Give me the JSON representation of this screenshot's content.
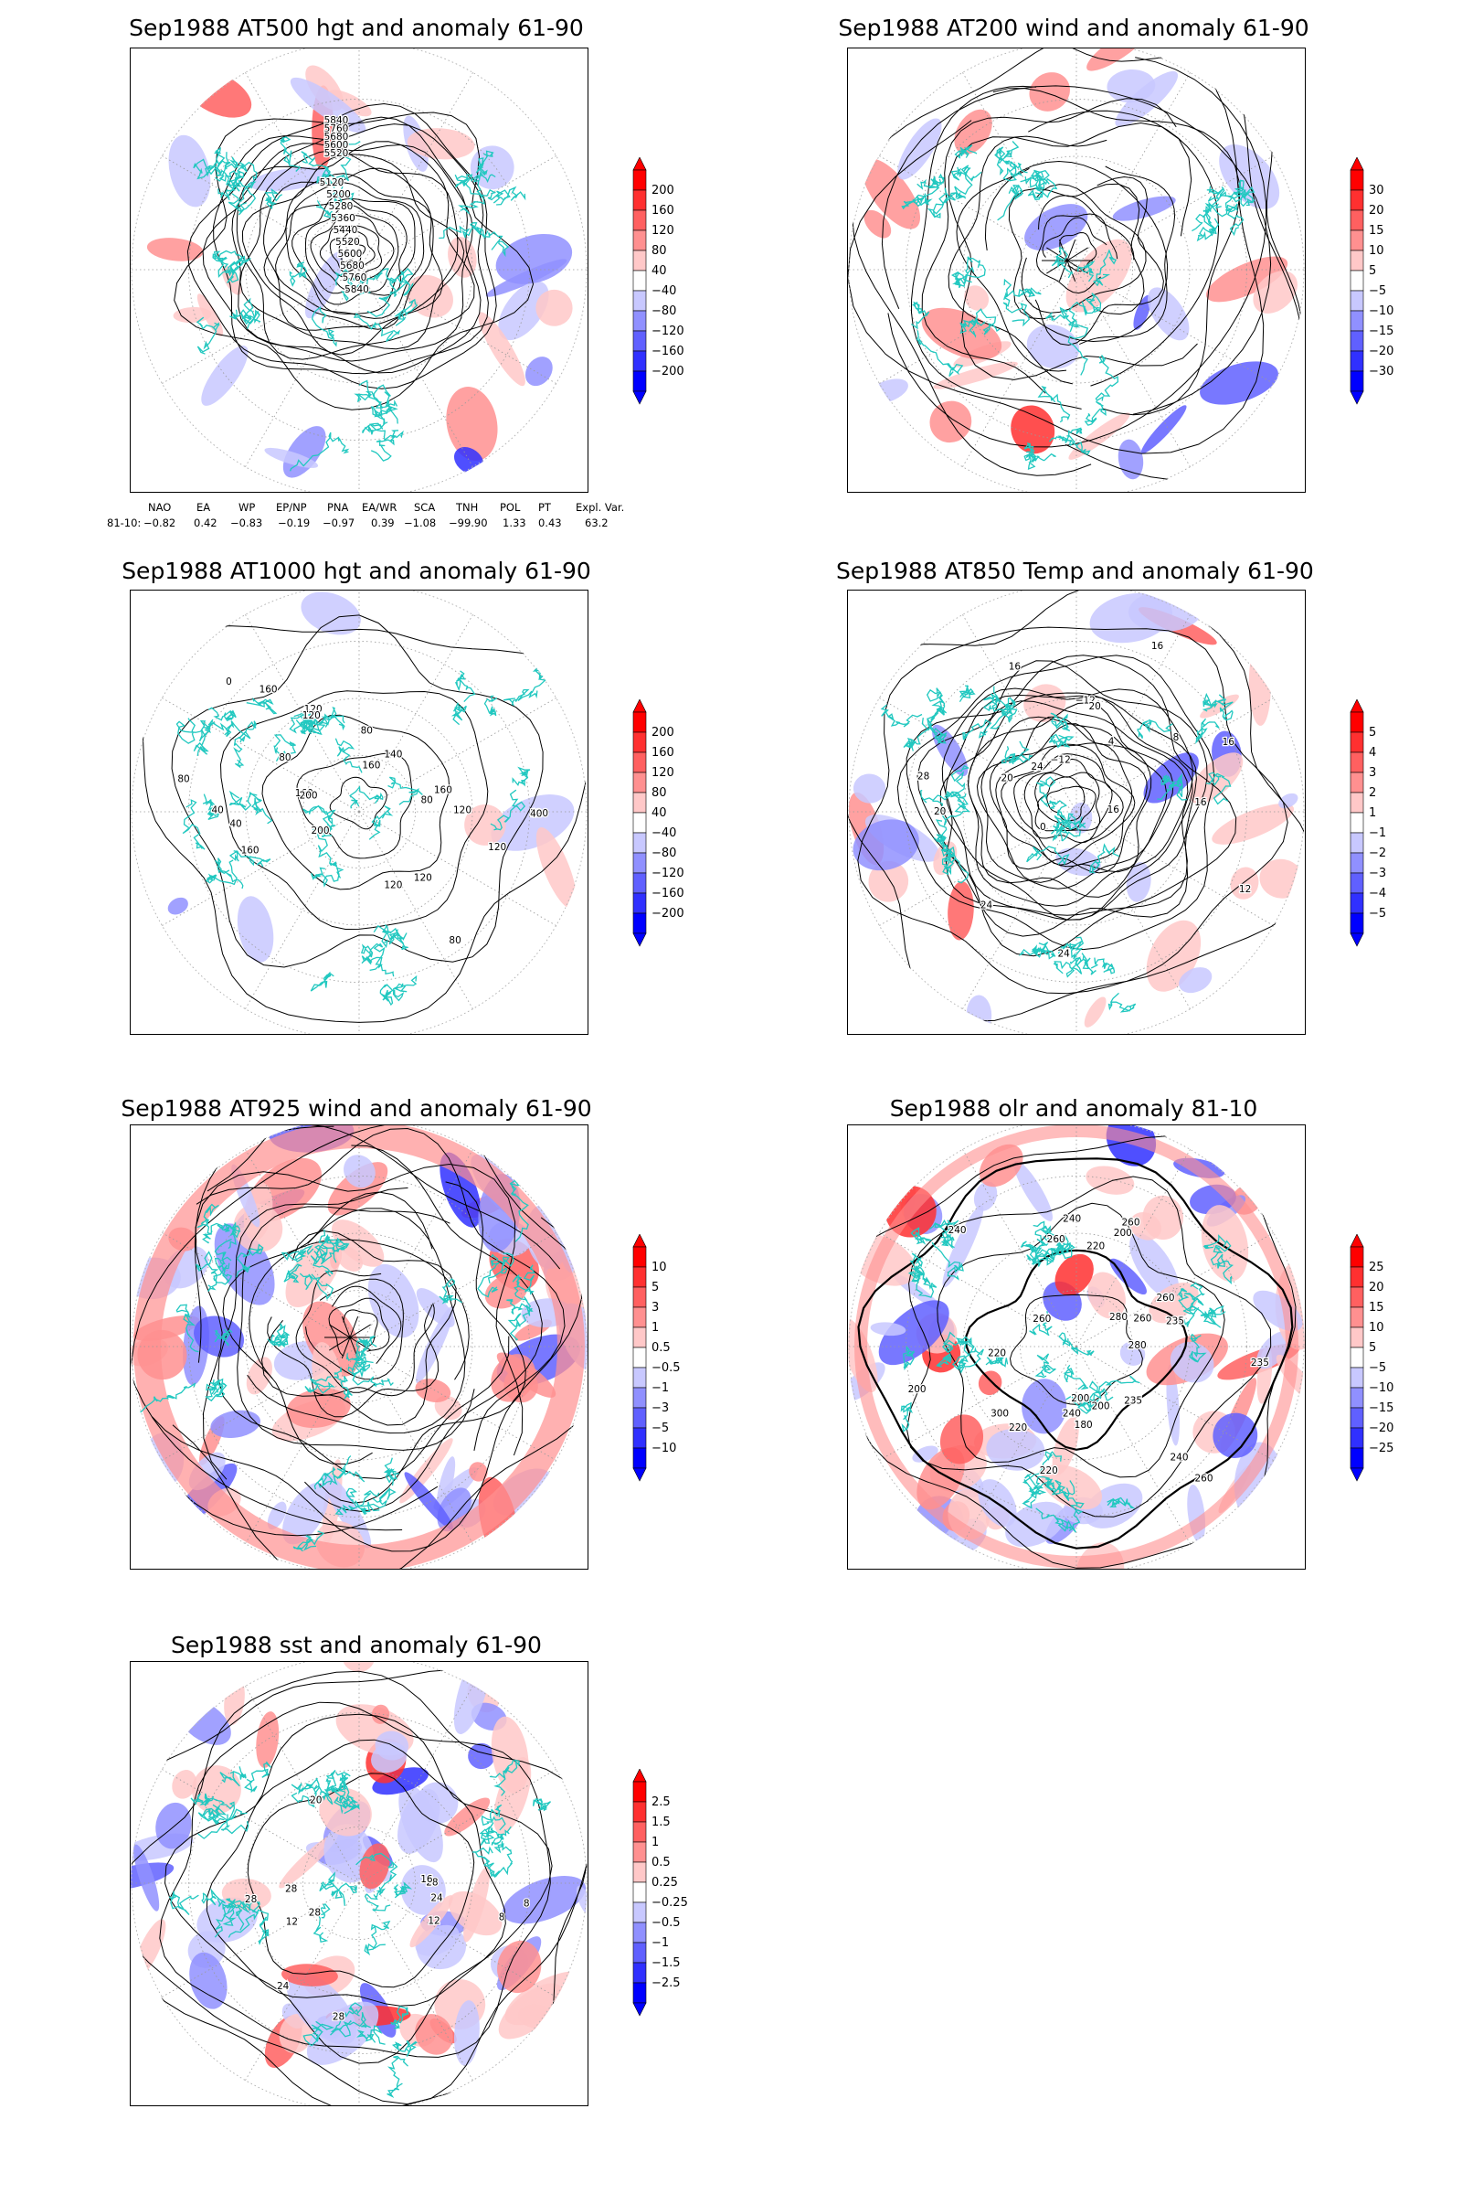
{
  "panels": [
    {
      "id": "p1",
      "title": "Sep1988 AT500 hgt and anomaly 61-90",
      "colorbar": [
        "200",
        "160",
        "120",
        "80",
        "40",
        "−40",
        "−80",
        "−120",
        "−160",
        "−200"
      ],
      "contour_labels": [
        "5840",
        "5760",
        "5680",
        "5600",
        "5520",
        "5120",
        "5200",
        "5280",
        "5360",
        "5440",
        "5520",
        "5600",
        "5680",
        "5760",
        "5840"
      ]
    },
    {
      "id": "p2",
      "title": "Sep1988 AT200 wind and anomaly 61-90",
      "colorbar": [
        "30",
        "20",
        "15",
        "10",
        "5",
        "−5",
        "−10",
        "−15",
        "−20",
        "−30"
      ],
      "contour_labels": []
    },
    {
      "id": "p3",
      "title": "Sep1988 AT1000 hgt and anomaly 61-90",
      "colorbar": [
        "200",
        "160",
        "120",
        "80",
        "40",
        "−40",
        "−80",
        "−120",
        "−160",
        "−200"
      ],
      "contour_labels": [
        "120",
        "160",
        "200",
        "160",
        "80",
        "80",
        "120",
        "120",
        "120",
        "40",
        "0",
        "40",
        "160",
        "120",
        "160",
        "80",
        "40",
        "120",
        "200",
        "160",
        "140",
        "120",
        "80",
        "80"
      ]
    },
    {
      "id": "p4",
      "title": "Sep1988 AT850 Temp and anomaly 61-90",
      "colorbar": [
        "5",
        "4",
        "3",
        "2",
        "1",
        "−1",
        "−2",
        "−3",
        "−4",
        "−5"
      ],
      "contour_labels": [
        "16",
        "12",
        "16",
        "8",
        "4",
        "0",
        "−12",
        "−12",
        "16",
        "24",
        "20",
        "24",
        "20",
        "28",
        "16",
        "16",
        "24",
        "20"
      ]
    },
    {
      "id": "p5",
      "title": "Sep1988 AT925 wind and anomaly 61-90",
      "colorbar": [
        "10",
        "5",
        "3",
        "1",
        "0.5",
        "−0.5",
        "−1",
        "−3",
        "−5",
        "−10"
      ],
      "contour_labels": []
    },
    {
      "id": "p6",
      "title": "Sep1988 olr and anomaly 81-10",
      "colorbar": [
        "25",
        "20",
        "15",
        "10",
        "5",
        "−5",
        "−10",
        "−15",
        "−20",
        "−25"
      ],
      "contour_labels": [
        "280",
        "260",
        "235",
        "260",
        "260",
        "200",
        "220",
        "235",
        "260",
        "240",
        "200",
        "220",
        "200",
        "180",
        "220",
        "240",
        "280",
        "260",
        "300",
        "235",
        "200",
        "220",
        "240",
        "260",
        "240"
      ]
    },
    {
      "id": "p7",
      "title": "Sep1988 sst and anomaly 61-90",
      "colorbar": [
        "2.5",
        "1.5",
        "1",
        "0.5",
        "0.25",
        "−0.25",
        "−0.5",
        "−1",
        "−1.5",
        "−2.5"
      ],
      "contour_labels": [
        "28",
        "24",
        "28",
        "28",
        "16",
        "12",
        "8",
        "20",
        "12",
        "8",
        "28",
        "24",
        "28"
      ]
    }
  ],
  "indices": {
    "headers": [
      "NAO",
      "EA",
      "WP",
      "EP/NP",
      "PNA",
      "EA/WR",
      "SCA",
      "TNH",
      "POL",
      "PT",
      "Expl. Var."
    ],
    "row_label": "81-10:",
    "values": [
      "−0.82",
      "0.42",
      "−0.83",
      "−0.19",
      "−0.97",
      "0.39",
      "−1.08",
      "−99.90",
      "1.33",
      "0.43",
      "63.2"
    ]
  },
  "colors": {
    "coast": "#22c8c0",
    "red_scale": [
      "#ff0000",
      "#ff3030",
      "#ff6060",
      "#ff9090",
      "#ffc8c8"
    ],
    "blue_scale": [
      "#c8c8ff",
      "#9090ff",
      "#6060ff",
      "#3030ff",
      "#0000ff"
    ]
  }
}
